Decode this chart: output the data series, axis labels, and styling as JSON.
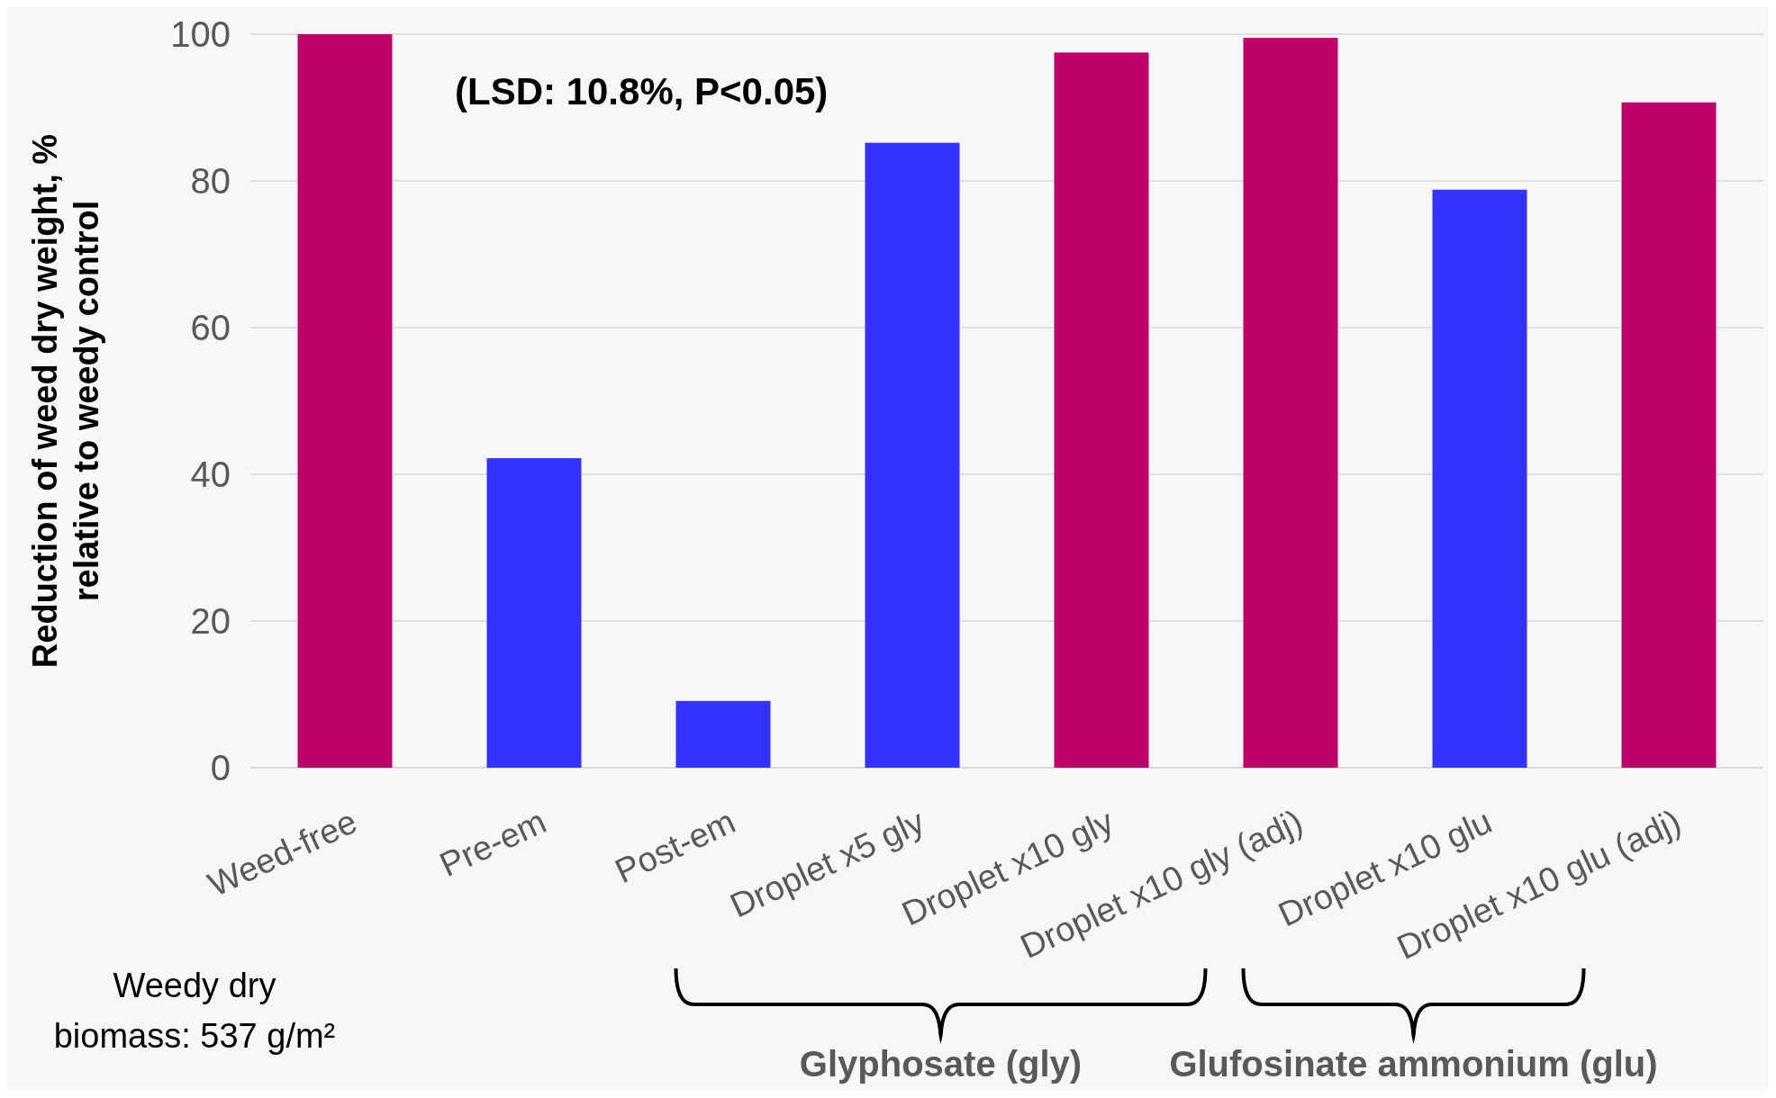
{
  "chart_data": {
    "type": "bar",
    "ylabel": "Reduction of weed dry weight, %\nrelative to weedy control",
    "categories": [
      "Weed-free",
      "Pre-em",
      "Post-em",
      "Droplet x5 gly",
      "Droplet x10 gly",
      "Droplet x10 gly (adj)",
      "Droplet x10 glu",
      "Droplet x10 glu (adj)"
    ],
    "values": [
      100,
      42.2,
      9.1,
      85.2,
      97.5,
      99.5,
      78.8,
      90.7
    ],
    "colors": [
      "#c0006a",
      "#3333ff",
      "#3333ff",
      "#3333ff",
      "#c0006a",
      "#c0006a",
      "#3333ff",
      "#c0006a"
    ],
    "ylim": [
      0,
      100
    ],
    "yticks": [
      0,
      20,
      40,
      60,
      80,
      100
    ],
    "grid": "y",
    "annotations": [
      "(LSD: 10.8%, P<0.05)",
      "Weedy dry\nbiomass: 537 g/m²",
      "Glyphosate (gly)",
      "Glufosinate ammonium (glu)"
    ]
  }
}
